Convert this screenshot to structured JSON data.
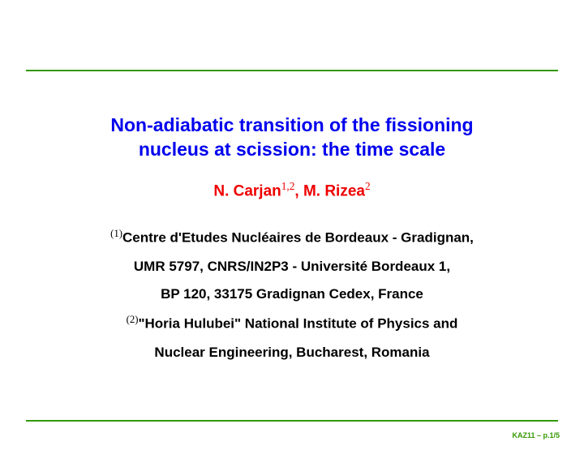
{
  "colors": {
    "rule": "#339900",
    "title": "#0000ee",
    "authors": "#ee0000",
    "body": "#000000",
    "footer": "#339900",
    "background": "#ffffff"
  },
  "title": {
    "line1": "Non-adiabatic transition of the fissioning",
    "line2": "nucleus at scission: the time scale",
    "fontsize": 23
  },
  "authors": {
    "a1_name": "N. Carjan",
    "a1_sup": "1,2",
    "sep": ", ",
    "a2_name": "M. Rizea",
    "a2_sup": "2",
    "fontsize": 19
  },
  "affiliations": {
    "sup1": "(1)",
    "line1": "Centre d'Etudes Nucléaires de Bordeaux - Gradignan,",
    "line2": "UMR 5797, CNRS/IN2P3 - Université Bordeaux 1,",
    "line3": "BP 120, 33175 Gradignan Cedex, France",
    "sup2": "(2)",
    "line4": "\"Horia Hulubei\" National Institute of Physics and",
    "line5": "Nuclear Engineering, Bucharest, Romania",
    "fontsize": 17
  },
  "footer": {
    "text": "KAZ11 – p.1/5",
    "fontsize": 9
  }
}
